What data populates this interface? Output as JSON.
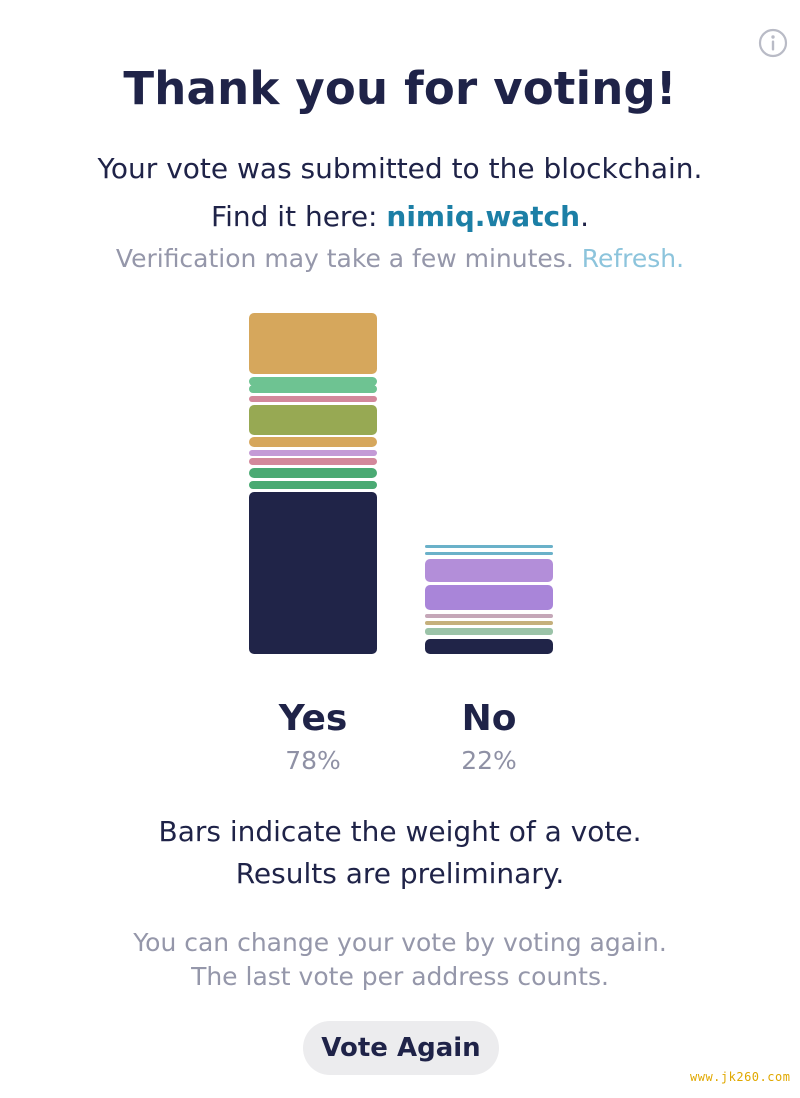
{
  "info_icon": "info-icon",
  "title": "Thank you for voting!",
  "message": {
    "submitted": "Your vote was submitted to the blockchain.",
    "find_prefix": "Find it here: ",
    "link_text": "nimiq.watch",
    "find_suffix": ".",
    "verification": "Verification may take a few minutes. ",
    "refresh_label": "Refresh."
  },
  "results": {
    "options": [
      {
        "label": "Yes",
        "percent": "78%",
        "segment_colors": [
          "#d6a75c",
          "#6ec392",
          "#6ec392",
          "#d3889b",
          "#97a953",
          "#d6a75c",
          "#c49ad6",
          "#d3889b",
          "#4aaa73",
          "#4aaa73",
          "#202448"
        ]
      },
      {
        "label": "No",
        "percent": "22%",
        "segment_colors": [
          "#6ab1c9",
          "#6ab1c9",
          "#b38ed9",
          "#a985d9",
          "#c5a7b8",
          "#c5b07c",
          "#9bc3a8",
          "#202448"
        ]
      }
    ]
  },
  "notes": {
    "bars_line1": "Bars indicate the weight of a vote.",
    "bars_line2": "Results are preliminary.",
    "change_line1": "You can change your vote by voting again.",
    "change_line2": "The last vote per address counts."
  },
  "vote_again_label": "Vote Again",
  "watermark": "www.jk260.com"
}
